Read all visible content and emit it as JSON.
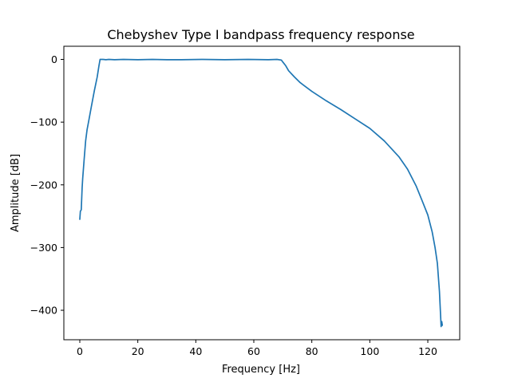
{
  "chart_data": {
    "type": "line",
    "title": "Chebyshev Type I bandpass frequency response",
    "xlabel": "Frequency [Hz]",
    "ylabel": "Amplitude [dB]",
    "xlim": [
      -5.5,
      131.0
    ],
    "ylim": [
      -447.0,
      21.0
    ],
    "xticks": [
      0,
      20,
      40,
      60,
      80,
      100,
      120
    ],
    "yticks": [
      0,
      -100,
      -200,
      -300,
      -400
    ],
    "xtick_labels": [
      "0",
      "20",
      "40",
      "60",
      "80",
      "100",
      "120"
    ],
    "ytick_labels": [
      "0",
      "−100",
      "−200",
      "−300",
      "−400"
    ],
    "grid": false,
    "colors": {
      "series": "#1f77b4"
    },
    "series": [
      {
        "values_xy": [
          [
            0.0,
            -255
          ],
          [
            0.2,
            -242
          ],
          [
            0.5,
            -240
          ],
          [
            0.8,
            -205
          ],
          [
            1.0,
            -190
          ],
          [
            1.5,
            -160
          ],
          [
            2.0,
            -130
          ],
          [
            2.5,
            -112
          ],
          [
            3.0,
            -100
          ],
          [
            4.0,
            -75
          ],
          [
            5.0,
            -50
          ],
          [
            6.0,
            -28
          ],
          [
            6.6,
            -10
          ],
          [
            7.0,
            0
          ],
          [
            8.0,
            0
          ],
          [
            9.0,
            -0.5
          ],
          [
            10.0,
            0
          ],
          [
            12.0,
            -0.5
          ],
          [
            15.0,
            0
          ],
          [
            20.0,
            -0.5
          ],
          [
            25.0,
            0
          ],
          [
            30.0,
            -0.5
          ],
          [
            35.0,
            -0.5
          ],
          [
            42.0,
            0
          ],
          [
            50.0,
            -0.5
          ],
          [
            58.0,
            0
          ],
          [
            65.0,
            -0.5
          ],
          [
            68.0,
            0
          ],
          [
            69.5,
            -1
          ],
          [
            70.0,
            -4
          ],
          [
            71.0,
            -10
          ],
          [
            72.0,
            -18
          ],
          [
            74.0,
            -28
          ],
          [
            76.0,
            -37
          ],
          [
            80.0,
            -51
          ],
          [
            85.0,
            -66
          ],
          [
            90.0,
            -80
          ],
          [
            95.0,
            -95
          ],
          [
            100.0,
            -110
          ],
          [
            105.0,
            -130
          ],
          [
            110.0,
            -155
          ],
          [
            113.0,
            -175
          ],
          [
            116.0,
            -202
          ],
          [
            118.0,
            -225
          ],
          [
            120.0,
            -248
          ],
          [
            121.5,
            -275
          ],
          [
            122.5,
            -300
          ],
          [
            123.3,
            -325
          ],
          [
            124.0,
            -370
          ],
          [
            124.5,
            -418
          ],
          [
            124.6,
            -426
          ],
          [
            124.8,
            -418
          ],
          [
            125.0,
            -424
          ]
        ]
      }
    ]
  }
}
